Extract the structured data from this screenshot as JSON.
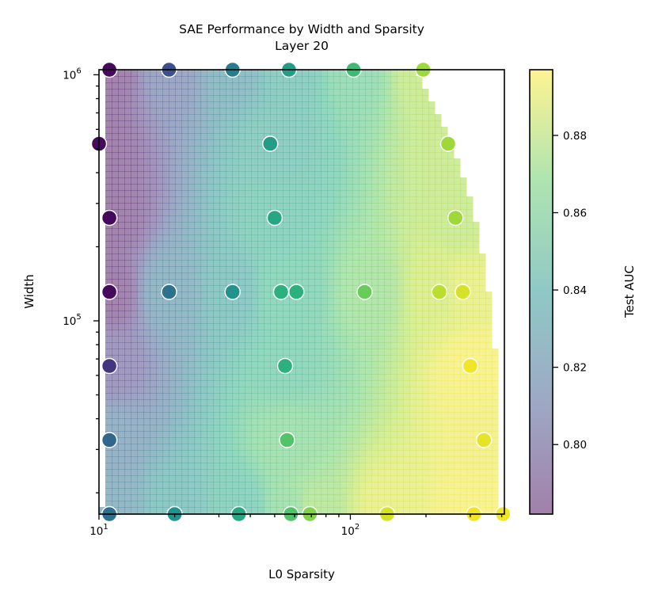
{
  "chart_data": {
    "type": "scatter",
    "title": "SAE Performance by Width and Sparsity",
    "subtitle": "Layer 20",
    "xlabel": "L0 Sparsity",
    "ylabel": "Width",
    "xscale": "log",
    "yscale": "log",
    "xlim": [
      10,
      410
    ],
    "ylim": [
      16384,
      1048576
    ],
    "x_ticks": [
      {
        "value": 10,
        "base": "10",
        "exp": "1"
      },
      {
        "value": 100,
        "base": "10",
        "exp": "2"
      }
    ],
    "y_ticks": [
      {
        "value": 100000,
        "base": "10",
        "exp": "5"
      },
      {
        "value": 1000000,
        "base": "10",
        "exp": "6"
      }
    ],
    "colorbar": {
      "label": "Test AUC",
      "range": [
        0.782,
        0.897
      ],
      "colormap": "viridis",
      "ticks": [
        "0.80",
        "0.82",
        "0.84",
        "0.86",
        "0.88"
      ],
      "tick_values": [
        0.8,
        0.82,
        0.84,
        0.86,
        0.88
      ]
    },
    "background": "interpolated Test AUC surface (viridis, translucent)",
    "points": [
      {
        "x": 11,
        "y": 1048576,
        "auc": 0.785
      },
      {
        "x": 19,
        "y": 1048576,
        "auc": 0.81
      },
      {
        "x": 34,
        "y": 1048576,
        "auc": 0.83
      },
      {
        "x": 57,
        "y": 1048576,
        "auc": 0.845
      },
      {
        "x": 103,
        "y": 1048576,
        "auc": 0.86
      },
      {
        "x": 195,
        "y": 1048576,
        "auc": 0.88
      },
      {
        "x": 10,
        "y": 524288,
        "auc": 0.785
      },
      {
        "x": 48,
        "y": 524288,
        "auc": 0.845
      },
      {
        "x": 245,
        "y": 524288,
        "auc": 0.88
      },
      {
        "x": 11,
        "y": 262144,
        "auc": 0.785
      },
      {
        "x": 50,
        "y": 262144,
        "auc": 0.85
      },
      {
        "x": 262,
        "y": 262144,
        "auc": 0.88
      },
      {
        "x": 11,
        "y": 131072,
        "auc": 0.785
      },
      {
        "x": 19,
        "y": 131072,
        "auc": 0.825
      },
      {
        "x": 34,
        "y": 131072,
        "auc": 0.84
      },
      {
        "x": 53,
        "y": 131072,
        "auc": 0.855
      },
      {
        "x": 61,
        "y": 131072,
        "auc": 0.855
      },
      {
        "x": 114,
        "y": 131072,
        "auc": 0.87
      },
      {
        "x": 226,
        "y": 131072,
        "auc": 0.885
      },
      {
        "x": 280,
        "y": 131072,
        "auc": 0.89
      },
      {
        "x": 11,
        "y": 65536,
        "auc": 0.8
      },
      {
        "x": 55,
        "y": 65536,
        "auc": 0.855
      },
      {
        "x": 300,
        "y": 65536,
        "auc": 0.895
      },
      {
        "x": 11,
        "y": 32768,
        "auc": 0.82
      },
      {
        "x": 56,
        "y": 32768,
        "auc": 0.865
      },
      {
        "x": 340,
        "y": 32768,
        "auc": 0.893
      },
      {
        "x": 11,
        "y": 16384,
        "auc": 0.825
      },
      {
        "x": 20,
        "y": 16384,
        "auc": 0.84
      },
      {
        "x": 36,
        "y": 16384,
        "auc": 0.85
      },
      {
        "x": 58,
        "y": 16384,
        "auc": 0.865
      },
      {
        "x": 69,
        "y": 16384,
        "auc": 0.875
      },
      {
        "x": 140,
        "y": 16384,
        "auc": 0.89
      },
      {
        "x": 310,
        "y": 16384,
        "auc": 0.895
      },
      {
        "x": 405,
        "y": 16384,
        "auc": 0.895
      }
    ]
  }
}
